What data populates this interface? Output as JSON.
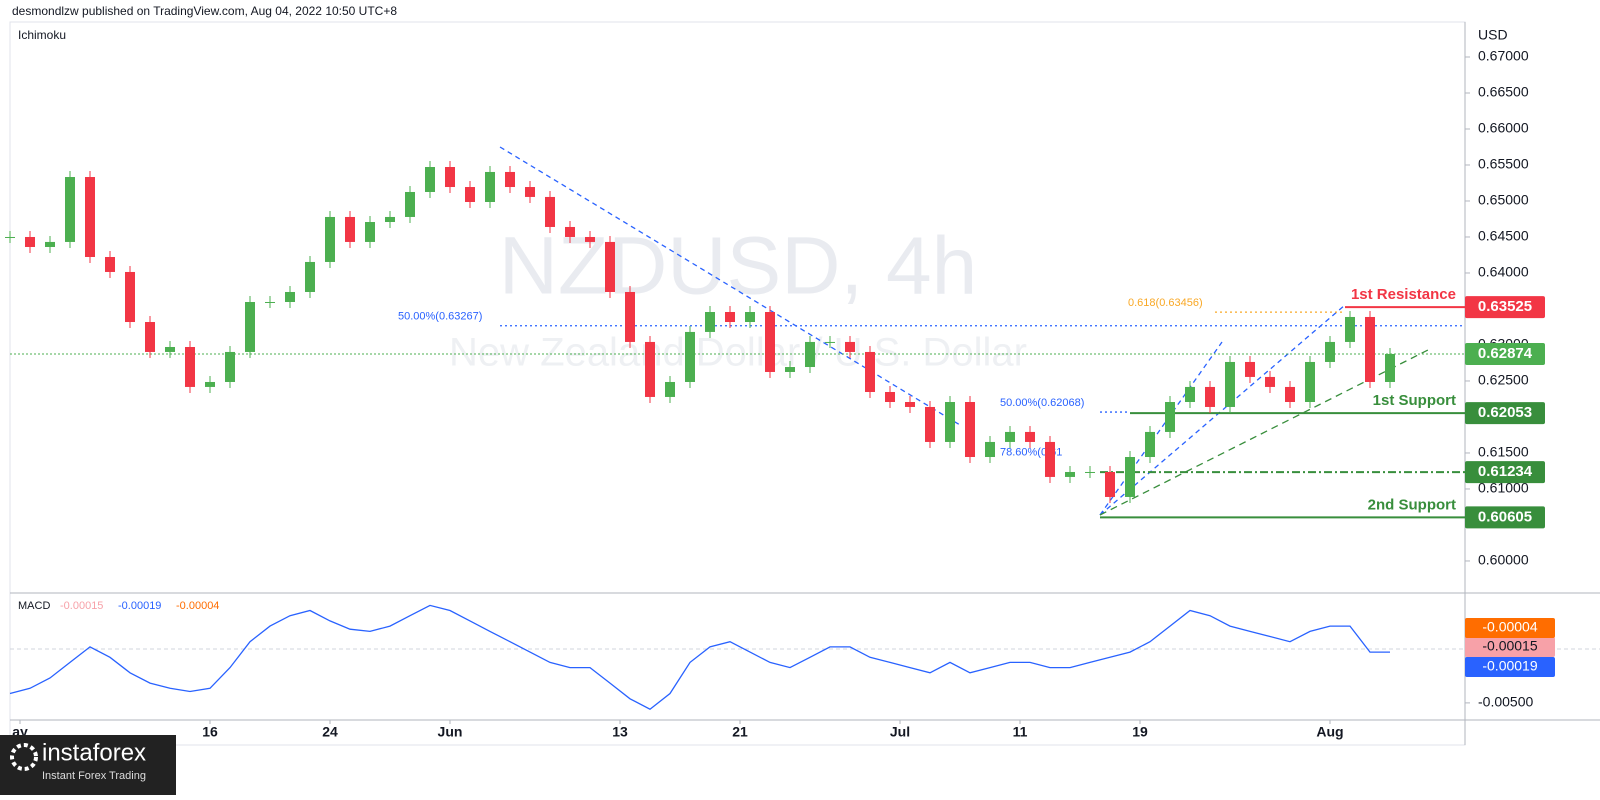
{
  "header": "desmondlzw published on TradingView.com, Aug 04, 2022 10:50 UTC+8",
  "logo": {
    "name": "instaforex",
    "tagline": "Instant Forex Trading"
  },
  "chart_data": [
    {
      "type": "candle",
      "indicator": "Ichimoku",
      "currency": "USD",
      "watermark": "NZDUSD, 4h",
      "watermark_subtitle": "New Zealand Dollar / U.S. Dollar",
      "up_color": "#4caf50",
      "down_color": "#f23645",
      "x": [
        -10,
        -9,
        -8,
        -7,
        -6,
        -5,
        -4,
        -3,
        -2,
        -1,
        0,
        1,
        2,
        3,
        4,
        5,
        6,
        7,
        8,
        9,
        10,
        11,
        12,
        13,
        14,
        15,
        16,
        17,
        18,
        19,
        20,
        21,
        22,
        23,
        24,
        25,
        26,
        27,
        28,
        29,
        30,
        31,
        32,
        33,
        34,
        35,
        36,
        37,
        38,
        39,
        40,
        41,
        42,
        43,
        44,
        45,
        46,
        47,
        48,
        49,
        50,
        51,
        52,
        53,
        54,
        55,
        56,
        57,
        58,
        59
      ],
      "values": [
        0.645,
        0.64361,
        0.64431,
        0.65333,
        0.64222,
        0.64014,
        0.63319,
        0.62903,
        0.62972,
        0.62417,
        0.62486,
        0.62903,
        0.63597,
        0.63597,
        0.63736,
        0.64153,
        0.64778,
        0.64431,
        0.64708,
        0.64778,
        0.65125,
        0.65472,
        0.65194,
        0.64986,
        0.65403,
        0.65194,
        0.65056,
        0.64639,
        0.645,
        0.64431,
        0.63736,
        0.63042,
        0.62278,
        0.62486,
        0.63181,
        0.63458,
        0.63319,
        0.63458,
        0.62625,
        0.62694,
        0.63042,
        0.63042,
        0.62903,
        0.62347,
        0.62208,
        0.62139,
        0.61653,
        0.62208,
        0.61444,
        0.61653,
        0.61792,
        0.61653,
        0.61167,
        0.61236,
        0.61236,
        0.60889,
        0.61444,
        0.61792,
        0.62208,
        0.62417,
        0.62139,
        0.62764,
        0.62556,
        0.62417,
        0.62208,
        0.62764,
        0.63042,
        0.63389,
        0.62486,
        0.62875
      ],
      "xlim": [
        -10,
        62.75
      ],
      "xticks": [
        {
          "value": -9.5,
          "label": "ay"
        },
        {
          "value": 0,
          "label": "16"
        },
        {
          "value": 6,
          "label": "24"
        },
        {
          "value": 12,
          "label": "Jun"
        },
        {
          "value": 20.5,
          "label": "13"
        },
        {
          "value": 26.5,
          "label": "21"
        },
        {
          "value": 34.5,
          "label": "Jul"
        },
        {
          "value": 40.5,
          "label": "11"
        },
        {
          "value": 46.5,
          "label": "19"
        },
        {
          "value": 56,
          "label": "Aug"
        }
      ],
      "ylim": [
        0.59569,
        0.67486
      ],
      "yticks": [
        {
          "value": 0.6,
          "label": "0.60000"
        },
        {
          "value": 0.61,
          "label": "0.61000"
        },
        {
          "value": 0.615,
          "label": "0.61500"
        },
        {
          "value": 0.625,
          "label": "0.62500"
        },
        {
          "value": 0.63,
          "label": "0.63000"
        },
        {
          "value": 0.64,
          "label": "0.64000"
        },
        {
          "value": 0.645,
          "label": "0.64500"
        },
        {
          "value": 0.65,
          "label": "0.65000"
        },
        {
          "value": 0.655,
          "label": "0.65500"
        },
        {
          "value": 0.66,
          "label": "0.66000"
        },
        {
          "value": 0.665,
          "label": "0.66500"
        },
        {
          "value": 0.67,
          "label": "0.67000"
        }
      ],
      "levels": [
        {
          "value": 0.63525,
          "name": "1st Resistance",
          "color": "#f23645"
        },
        {
          "value": 0.62874,
          "color": "#4caf50"
        },
        {
          "value": 0.62053,
          "name": "1st Support",
          "color": "#388e3c"
        },
        {
          "value": 0.61234,
          "color": "#388e3c"
        },
        {
          "value": 0.60605,
          "name": "2nd Support",
          "color": "#388e3c"
        }
      ],
      "fibs": [
        {
          "value": 0.63267,
          "label": "50.00%(0.63267)",
          "color": "#2962ff"
        },
        {
          "value": 0.63456,
          "label": "0.618(0.63456)",
          "color": "#f9a825"
        },
        {
          "value": 0.62068,
          "label": "50.00%(0.62068)",
          "color": "#2962ff"
        },
        {
          "value": 0.6138,
          "label": "78.60%(0.61",
          "color": "#2962ff"
        }
      ]
    },
    {
      "type": "line",
      "title": "MACD",
      "color": "#2962ff",
      "legend_values": [
        {
          "value": -0.00015,
          "color": "#f7a1a8"
        },
        {
          "value": -0.00019,
          "color": "#2962ff"
        },
        {
          "value": -4e-05,
          "color": "#ff6d00"
        }
      ],
      "x": [
        -10,
        -9,
        -8,
        -7,
        -6,
        -5,
        -4,
        -3,
        -2,
        -1,
        0,
        1,
        2,
        3,
        4,
        5,
        6,
        7,
        8,
        9,
        10,
        11,
        12,
        13,
        14,
        15,
        16,
        17,
        18,
        19,
        20,
        21,
        22,
        23,
        24,
        25,
        26,
        27,
        28,
        29,
        30,
        31,
        32,
        33,
        34,
        35,
        36,
        37,
        38,
        39,
        40,
        41,
        42,
        43,
        44,
        45,
        46,
        47,
        48,
        49,
        50,
        51,
        52,
        53,
        54,
        55,
        56,
        57,
        58,
        59
      ],
      "values": [
        -0.00413,
        -0.00365,
        -0.00269,
        -0.00125,
        0.00019,
        -0.00077,
        -0.00221,
        -0.00317,
        -0.00365,
        -0.00394,
        -0.00365,
        -0.00173,
        0.00067,
        0.00212,
        0.00308,
        0.00356,
        0.0026,
        0.00183,
        0.00163,
        0.00212,
        0.00308,
        0.00404,
        0.00356,
        0.0026,
        0.00163,
        0.00067,
        -0.00029,
        -0.00125,
        -0.00173,
        -0.00173,
        -0.00317,
        -0.00462,
        -0.00558,
        -0.00413,
        -0.00125,
        0.00019,
        0.00067,
        -0.00029,
        -0.00125,
        -0.00173,
        -0.00077,
        0.00019,
        0.00019,
        -0.00077,
        -0.00125,
        -0.00173,
        -0.00221,
        -0.00125,
        -0.00221,
        -0.00173,
        -0.00125,
        -0.00125,
        -0.00173,
        -0.00173,
        -0.00125,
        -0.00077,
        -0.00029,
        0.00067,
        0.00212,
        0.00356,
        0.00308,
        0.00212,
        0.00163,
        0.00115,
        0.00067,
        0.00163,
        0.00212,
        0.00212,
        -0.00029,
        -0.00029
      ],
      "xlim": [
        -10,
        62.75
      ],
      "ylim": [
        -0.0064,
        0.005
      ],
      "yticks": [
        {
          "value": -0.005,
          "label": "-0.00500"
        }
      ]
    }
  ]
}
